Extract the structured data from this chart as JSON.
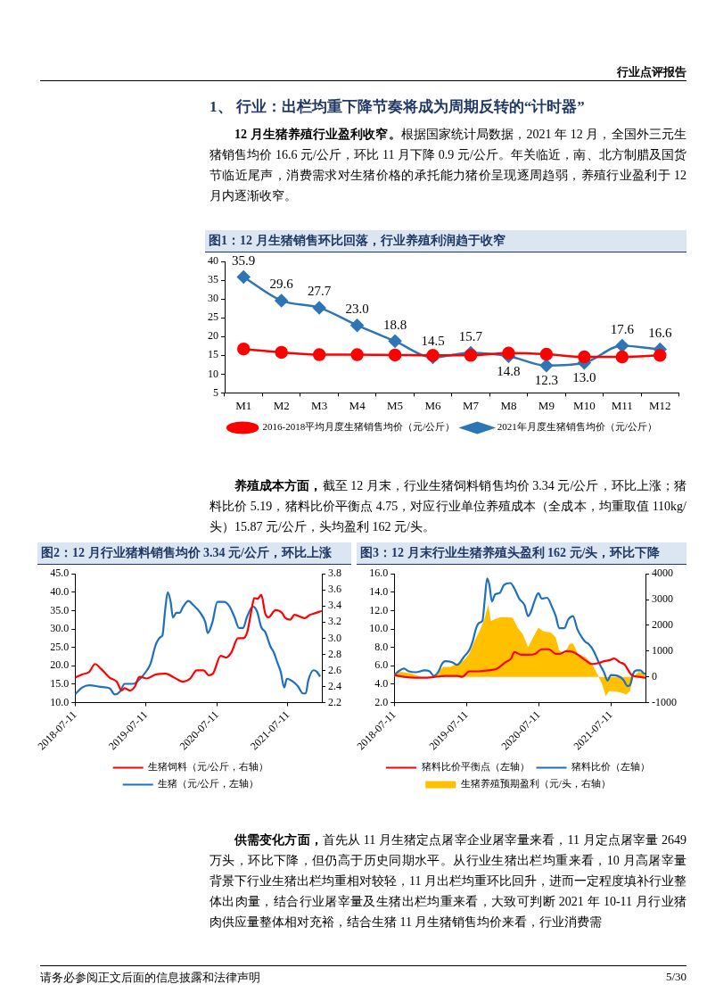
{
  "chart_data": [
    {
      "type": "other",
      "title": "1、 行业：出栏均重下降节奏将成为周期反转的“计时器”",
      "subtitle": "12 月生猪养殖行业盈利收窄。",
      "annotations": [
        "行业点评报告",
        "根据国家统计局数据，2021 年 12 月，全国外三元生猪销售均价 16.6 元/公斤，环比 11 月下降 0.9 元/公斤。年关临近，南、北方制腊及国货节临近尾声，消费需求对生猪价格的承托能力猪价呈现逐周趋弱，养殖行业盈利于 12 月内逐渐收窄。"
      ]
    },
    {
      "type": "line",
      "title": "图1：12 月生猪销售环比回落，行业养殖利润趋于收窄",
      "categories": [
        "M1",
        "M2",
        "M3",
        "M4",
        "M5",
        "M6",
        "M7",
        "M8",
        "M9",
        "M10",
        "M11",
        "M12"
      ],
      "ylim": [
        5,
        40
      ],
      "yticks": [
        5,
        10,
        15,
        20,
        25,
        30,
        35,
        40
      ],
      "legend": "bottom",
      "series": [
        {
          "name": "2021年月度生猪销售均价（元/公斤）",
          "color": "#2e75b6",
          "marker": "diamond",
          "values": [
            35.9,
            29.6,
            27.7,
            23.0,
            18.8,
            14.5,
            15.7,
            14.8,
            12.3,
            13.0,
            17.6,
            16.6
          ],
          "value_labels": [
            "35.9",
            "29.6",
            "27.7",
            "23.0",
            "18.8",
            "14.5",
            "15.7",
            "14.8",
            "12.3",
            "13.0",
            "17.6",
            "16.6"
          ]
        },
        {
          "name": "2016-2018平均月度生猪销售均价（元/公斤）",
          "color": "#ff0000",
          "marker": "circle",
          "values": [
            16.7,
            15.8,
            15.2,
            15.2,
            15.1,
            15.0,
            15.0,
            15.6,
            15.3,
            14.6,
            14.6,
            15.0
          ]
        }
      ]
    },
    {
      "type": "other",
      "subtitle": "养殖成本方面，",
      "annotations": [
        "截至 12 月末，行业生猪饲料销售均价 3.34 元/公斤，环比上涨；猪料比价 5.19，猪料比价平衡点 4.75，对应行业单位养殖成本（全成本，均重取值 110kg/头）15.87 元/公斤，头均盈利 162 元/头。"
      ]
    },
    {
      "type": "line",
      "title": "图2：12 月行业猪料销售均价 3.34 元/公斤，环比上涨",
      "xlim": [
        "2018-07-11",
        "2022-01-02"
      ],
      "xticks": [
        "2018-07-11",
        "2019-07-11",
        "2020-07-11",
        "2021-07-11"
      ],
      "ylim": [
        10,
        45
      ],
      "yticks": [
        {
          "value": 10,
          "label": "10.0"
        },
        {
          "value": 15,
          "label": "15.0"
        },
        {
          "value": 20,
          "label": "20.0"
        },
        {
          "value": 25,
          "label": "25.0"
        },
        {
          "value": 30,
          "label": "30.0"
        },
        {
          "value": 35,
          "label": "35.0"
        },
        {
          "value": 40,
          "label": "40.0"
        },
        {
          "value": 45,
          "label": "45.0"
        }
      ],
      "y2lim": [
        2.2,
        3.8
      ],
      "y2ticks": [
        2.2,
        2.4,
        2.6,
        2.8,
        {
          "value": 3,
          "label": "3.0"
        },
        3.2,
        3.4,
        3.6,
        3.8
      ],
      "legend": "bottom",
      "marker": "none",
      "series": [
        {
          "name": "生猪（元/公斤，左轴）",
          "color": "#1f6fbf",
          "x": [
            "2018-07-11",
            "2018-08-16",
            "2018-09-21",
            "2018-11-30",
            "2019-01-05",
            "2019-01-31",
            "2019-02-27",
            "2019-03-23",
            "2019-05-07",
            "2019-06-11",
            "2019-07-16",
            "2019-08-03",
            "2019-08-30",
            "2019-09-26",
            "2019-10-04",
            "2019-10-17",
            "2019-10-31",
            "2019-11-15",
            "2019-11-27",
            "2019-12-14",
            "2019-12-31",
            "2020-01-19",
            "2020-02-15",
            "2020-03-11",
            "2020-04-16",
            "2020-05-12",
            "2020-05-24",
            "2020-06-17",
            "2020-07-13",
            "2020-08-18",
            "2020-09-14",
            "2020-10-10",
            "2020-11-01",
            "2020-11-23",
            "2020-12-11",
            "2021-01-12",
            "2021-02-02",
            "2021-02-24",
            "2021-03-16",
            "2021-04-12",
            "2021-04-30",
            "2021-05-17",
            "2021-06-04",
            "2021-06-22",
            "2021-07-06",
            "2021-08-04",
            "2021-08-31",
            "2021-09-27",
            "2021-10-11",
            "2021-10-24",
            "2021-11-20",
            "2021-12-07",
            "2021-12-24"
          ],
          "values": [
            12.3,
            14.1,
            14.7,
            14.2,
            13.9,
            12.2,
            13.0,
            15.1,
            15.1,
            16.5,
            18.8,
            20.5,
            25.7,
            27.9,
            28.3,
            34.8,
            40.0,
            37.4,
            33.1,
            34.4,
            34.4,
            36.1,
            37.6,
            36.5,
            34.4,
            31.8,
            28.9,
            31.8,
            37.4,
            37.4,
            36.1,
            33.1,
            30.3,
            30.3,
            33.1,
            36.1,
            34.8,
            30.5,
            29.2,
            25.3,
            23.6,
            21.0,
            18.4,
            14.1,
            16.5,
            15.8,
            14.5,
            12.5,
            12.5,
            16.0,
            18.8,
            18.4,
            17.1
          ]
        },
        {
          "name": "生猪饲料（元/公斤，右轴）",
          "color": "#ff0000",
          "axis": "y2",
          "x": [
            "2018-07-11",
            "2018-08-16",
            "2018-09-21",
            "2018-10-22",
            "2018-11-21",
            "2019-01-05",
            "2019-02-10",
            "2019-03-08",
            "2019-03-23",
            "2019-04-19",
            "2019-05-15",
            "2019-06-07",
            "2019-07-16",
            "2019-08-30",
            "2019-10-22",
            "2019-11-27",
            "2020-01-19",
            "2020-02-24",
            "2020-03-28",
            "2020-05-03",
            "2020-05-29",
            "2020-06-20",
            "2020-07-30",
            "2020-08-26",
            "2020-09-22",
            "2020-10-27",
            "2020-11-23",
            "2020-12-14",
            "2021-01-06",
            "2021-01-19",
            "2021-02-05",
            "2021-02-24",
            "2021-03-16",
            "2021-04-02",
            "2021-05-08",
            "2021-06-13",
            "2021-06-25",
            "2021-07-23",
            "2021-08-14",
            "2021-10-06",
            "2021-11-01",
            "2021-11-28",
            "2022-01-02"
          ],
          "values": [
            2.51,
            2.55,
            2.58,
            2.68,
            2.62,
            2.51,
            2.46,
            2.35,
            2.38,
            2.35,
            2.4,
            2.52,
            2.5,
            2.55,
            2.56,
            2.52,
            2.46,
            2.5,
            2.6,
            2.6,
            2.54,
            2.56,
            2.78,
            2.76,
            2.82,
            3.0,
            3.0,
            3.08,
            3.37,
            3.5,
            3.49,
            3.54,
            3.31,
            3.26,
            3.35,
            3.31,
            3.26,
            3.23,
            3.29,
            3.25,
            3.29,
            3.31,
            3.34
          ]
        }
      ]
    },
    {
      "type": "line",
      "title": "图3：12 月末行业生猪养殖头盈利 162 元/头，环比下降",
      "xlim": [
        "2018-07-11",
        "2022-01-02"
      ],
      "xticks": [
        "2018-07-11",
        "2019-07-11",
        "2020-07-11",
        "2021-07-11"
      ],
      "ylim": [
        2,
        16
      ],
      "yticks": [
        {
          "value": 2,
          "label": "2.0"
        },
        {
          "value": 4,
          "label": "4.0"
        },
        {
          "value": 6,
          "label": "6.0"
        },
        {
          "value": 8,
          "label": "8.0"
        },
        {
          "value": 10,
          "label": "10.0"
        },
        {
          "value": 12,
          "label": "12.0"
        },
        {
          "value": 14,
          "label": "14.0"
        },
        {
          "value": 16,
          "label": "16.0"
        }
      ],
      "y2lim": [
        -1000,
        4000
      ],
      "y2ticks": [
        -1000,
        0,
        1000,
        2000,
        3000,
        4000
      ],
      "legend": "bottom",
      "marker": "none",
      "series": [
        {
          "name": "生猪养殖预期盈利（元/头，右轴）",
          "type": "area",
          "color": "#ffc000",
          "axis": "y2",
          "x": [
            "2018-07-11",
            "2018-08-10",
            "2018-10-02",
            "2018-11-24",
            "2019-01-24",
            "2019-02-20",
            "2019-03-15",
            "2019-04-20",
            "2019-05-25",
            "2019-06-29",
            "2019-07-25",
            "2019-08-21",
            "2019-09-16",
            "2019-10-12",
            "2019-10-29",
            "2019-11-12",
            "2019-11-29",
            "2019-12-30",
            "2020-02-03",
            "2020-03-01",
            "2020-03-26",
            "2020-04-21",
            "2020-05-18",
            "2020-06-04",
            "2020-07-09",
            "2020-08-04",
            "2020-09-10",
            "2020-10-05",
            "2020-10-22",
            "2020-11-18",
            "2020-12-14",
            "2020-12-31",
            "2021-01-25",
            "2021-03-04",
            "2021-04-05",
            "2021-04-23",
            "2021-05-10",
            "2021-05-28",
            "2021-06-15",
            "2021-07-02",
            "2021-07-28",
            "2021-09-01",
            "2021-09-28",
            "2021-10-15",
            "2021-11-02",
            "2021-11-29",
            "2021-12-24",
            "2022-01-02"
          ],
          "values": [
            140,
            200,
            140,
            0,
            0,
            200,
            390,
            390,
            520,
            650,
            900,
            1400,
            1790,
            2290,
            2800,
            2160,
            2230,
            2320,
            2320,
            2290,
            1910,
            1660,
            1150,
            1410,
            1910,
            1760,
            1720,
            1530,
            1030,
            900,
            1280,
            1300,
            900,
            770,
            520,
            270,
            0,
            -300,
            -750,
            -560,
            -560,
            -620,
            -680,
            -560,
            0,
            200,
            140,
            50
          ]
        },
        {
          "name": "猪料比价（左轴）",
          "color": "#1f6fbf",
          "x": [
            "2018-07-11",
            "2018-08-01",
            "2018-08-28",
            "2018-09-23",
            "2018-10-28",
            "2018-12-11",
            "2019-01-06",
            "2019-01-27",
            "2019-02-20",
            "2019-03-09",
            "2019-03-24",
            "2019-04-29",
            "2019-05-25",
            "2019-06-29",
            "2019-07-25",
            "2019-08-12",
            "2019-08-29",
            "2019-09-16",
            "2019-09-30",
            "2019-10-12",
            "2019-10-24",
            "2019-11-04",
            "2019-11-17",
            "2019-12-04",
            "2019-12-26",
            "2020-01-17",
            "2020-02-18",
            "2020-03-10",
            "2020-04-03",
            "2020-04-30",
            "2020-05-18",
            "2020-05-31",
            "2020-06-22",
            "2020-07-09",
            "2020-07-26",
            "2020-08-22",
            "2020-09-18",
            "2020-10-05",
            "2020-10-22",
            "2020-11-18",
            "2020-12-06",
            "2020-12-31",
            "2021-01-22",
            "2021-02-14",
            "2021-03-04",
            "2021-03-19",
            "2021-04-15",
            "2021-05-10",
            "2021-06-06",
            "2021-06-24",
            "2021-07-11",
            "2021-08-15",
            "2021-09-11",
            "2021-10-03",
            "2021-10-15",
            "2021-11-02",
            "2021-11-20",
            "2021-12-07",
            "2021-12-24",
            "2022-01-02"
          ],
          "values": [
            5.0,
            5.4,
            5.7,
            5.4,
            5.3,
            5.5,
            5.4,
            4.9,
            5.4,
            6.2,
            6.5,
            6.4,
            6.1,
            7.0,
            7.7,
            8.7,
            10.1,
            10.7,
            10.9,
            13.3,
            15.5,
            14.8,
            13.0,
            13.8,
            13.9,
            14.8,
            15.0,
            14.4,
            13.3,
            12.6,
            11.4,
            11.8,
            13.2,
            13.9,
            13.3,
            13.4,
            12.3,
            11.4,
            10.1,
            10.1,
            11.0,
            11.4,
            10.0,
            9.1,
            8.6,
            8.4,
            7.6,
            6.4,
            5.3,
            4.4,
            5.0,
            4.9,
            4.5,
            3.8,
            3.9,
            5.2,
            5.5,
            5.5,
            5.2,
            5.1
          ]
        },
        {
          "name": "猪料比价平衡点（左轴）",
          "color": "#ff0000",
          "x": [
            "2018-07-11",
            "2018-08-28",
            "2018-10-28",
            "2018-12-11",
            "2019-02-02",
            "2019-03-24",
            "2019-05-25",
            "2019-06-20",
            "2019-07-25",
            "2019-09-07",
            "2019-10-29",
            "2019-12-13",
            "2020-01-25",
            "2020-02-22",
            "2020-03-10",
            "2020-04-13",
            "2020-05-18",
            "2020-06-22",
            "2020-07-26",
            "2020-08-31",
            "2020-10-05",
            "2020-10-26",
            "2020-11-27",
            "2020-12-31",
            "2021-01-25",
            "2021-03-04",
            "2021-04-05",
            "2021-05-10",
            "2021-06-06",
            "2021-07-02",
            "2021-07-28",
            "2021-08-24",
            "2021-09-20",
            "2021-10-07",
            "2021-10-24",
            "2021-11-29",
            "2022-01-02"
          ],
          "values": [
            5.0,
            4.8,
            4.7,
            4.7,
            4.8,
            4.9,
            4.9,
            4.8,
            5.4,
            5.4,
            5.5,
            5.7,
            6.4,
            6.8,
            7.5,
            7.2,
            7.2,
            7.3,
            7.8,
            7.8,
            7.3,
            7.3,
            7.6,
            7.5,
            7.2,
            6.6,
            6.2,
            6.3,
            6.5,
            6.6,
            6.8,
            6.4,
            6.1,
            5.5,
            5.0,
            4.8,
            4.7
          ]
        }
      ]
    },
    {
      "type": "other",
      "subtitle": "供需变化方面，",
      "annotations": [
        "首先从 11 月生猪定点屠宰企业屠宰量来看，11 月定点屠宰量 2649 万头，环比下降，但仍高于历史同期水平。从行业生猪出栏均重来看，10 月高屠宰量背景下行业生猪出栏均重相对较轻，11 月出栏均重环比回升，进而一定程度填补行业整体出肉量，结合行业屠宰量及生猪出栏均重来看，大致可判断 2021 年 10-11 月行业猪肉供应量整体相对充裕，结合生猪 11 月生猪销售均价来看，行业消费需",
        "请务必参阅正文后面的信息披露和法律声明",
        "5/30"
      ]
    }
  ]
}
